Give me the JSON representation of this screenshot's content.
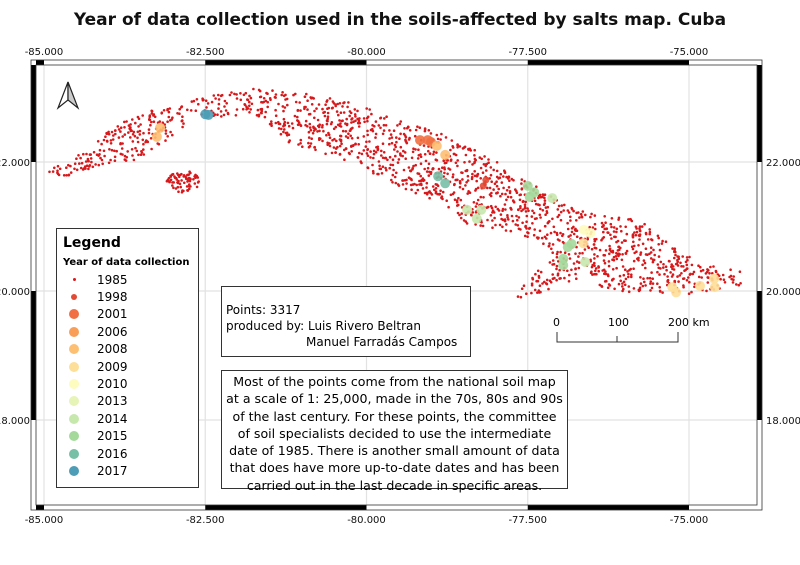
{
  "title": "Year of data collection used in the soils-affected by salts map. Cuba",
  "axes": {
    "lon_ticks": [
      "-85.000",
      "-82.500",
      "-80.000",
      "-77.500",
      "-75.000"
    ],
    "lon_values": [
      -85,
      -82.5,
      -80,
      -77.5,
      -75
    ],
    "lat_ticks": [
      "22.000",
      "20.000",
      "18.000"
    ],
    "lat_values": [
      22,
      20,
      18
    ],
    "grid": true
  },
  "north_arrow": "north-arrow-icon",
  "legend": {
    "title": "Legend",
    "subtitle": "Year of data collection",
    "items": [
      {
        "label": "1985",
        "color": "#d7191c"
      },
      {
        "label": "1998",
        "color": "#e34a33"
      },
      {
        "label": "2001",
        "color": "#f07043"
      },
      {
        "label": "2006",
        "color": "#f89e58"
      },
      {
        "label": "2008",
        "color": "#fdbf72"
      },
      {
        "label": "2009",
        "color": "#fedf99"
      },
      {
        "label": "2010",
        "color": "#fefcbe"
      },
      {
        "label": "2013",
        "color": "#e6f4b8"
      },
      {
        "label": "2014",
        "color": "#c7e8ad"
      },
      {
        "label": "2015",
        "color": "#a4d99b"
      },
      {
        "label": "2016",
        "color": "#77bfa6"
      },
      {
        "label": "2017",
        "color": "#4c9db5"
      }
    ]
  },
  "credits": {
    "points": "Points: 3317",
    "produced_by": "produced by: Luis Rivero Beltran",
    "second_author": "Manuel Farradás Campos"
  },
  "scale_bar": {
    "labels": [
      "0",
      "100",
      "200 km"
    ]
  },
  "note": "Most of the points come from the national soil map at a scale of 1: 25,000, made in the 70s, 80s and 90s of the last century. For these points, the committee of soil specialists decided to use the intermediate date of 1985. There is another small amount of data that does have more up-to-date dates and has been carried out in the last decade in specific areas.",
  "recent_points": [
    {
      "year": "2017",
      "lon": -82.5,
      "lat": 22.74
    },
    {
      "year": "2017",
      "lon": -82.45,
      "lat": 22.73
    },
    {
      "year": "2008",
      "lon": -83.2,
      "lat": 22.53
    },
    {
      "year": "2008",
      "lon": -83.25,
      "lat": 22.39
    },
    {
      "year": "2001",
      "lon": -79.17,
      "lat": 22.34
    },
    {
      "year": "2001",
      "lon": -79.05,
      "lat": 22.34
    },
    {
      "year": "2001",
      "lon": -79.0,
      "lat": 22.31
    },
    {
      "year": "2008",
      "lon": -78.91,
      "lat": 22.25
    },
    {
      "year": "2008",
      "lon": -78.78,
      "lat": 22.11
    },
    {
      "year": "2016",
      "lon": -78.89,
      "lat": 21.78
    },
    {
      "year": "2016",
      "lon": -78.78,
      "lat": 21.67
    },
    {
      "year": "1998",
      "lon": -78.15,
      "lat": 21.72
    },
    {
      "year": "1998",
      "lon": -78.19,
      "lat": 21.63
    },
    {
      "year": "2015",
      "lon": -77.5,
      "lat": 21.63
    },
    {
      "year": "2015",
      "lon": -77.4,
      "lat": 21.53
    },
    {
      "year": "2015",
      "lon": -77.47,
      "lat": 21.46
    },
    {
      "year": "2014",
      "lon": -77.12,
      "lat": 21.44
    },
    {
      "year": "2014",
      "lon": -78.44,
      "lat": 21.26
    },
    {
      "year": "2014",
      "lon": -78.22,
      "lat": 21.26
    },
    {
      "year": "2014",
      "lon": -78.29,
      "lat": 21.12
    },
    {
      "year": "2010",
      "lon": -76.63,
      "lat": 20.95
    },
    {
      "year": "2010",
      "lon": -76.53,
      "lat": 20.9
    },
    {
      "year": "2009",
      "lon": -76.64,
      "lat": 20.74
    },
    {
      "year": "2015",
      "lon": -76.88,
      "lat": 20.68
    },
    {
      "year": "2015",
      "lon": -76.82,
      "lat": 20.73
    },
    {
      "year": "2015",
      "lon": -76.95,
      "lat": 20.5
    },
    {
      "year": "2015",
      "lon": -76.95,
      "lat": 20.4
    },
    {
      "year": "2014",
      "lon": -76.61,
      "lat": 20.45
    },
    {
      "year": "2009",
      "lon": -75.26,
      "lat": 20.06
    },
    {
      "year": "2009",
      "lon": -75.2,
      "lat": 19.98
    },
    {
      "year": "2009",
      "lon": -74.83,
      "lat": 20.08
    },
    {
      "year": "2009",
      "lon": -74.61,
      "lat": 20.19
    },
    {
      "year": "2009",
      "lon": -74.6,
      "lat": 20.06
    }
  ]
}
